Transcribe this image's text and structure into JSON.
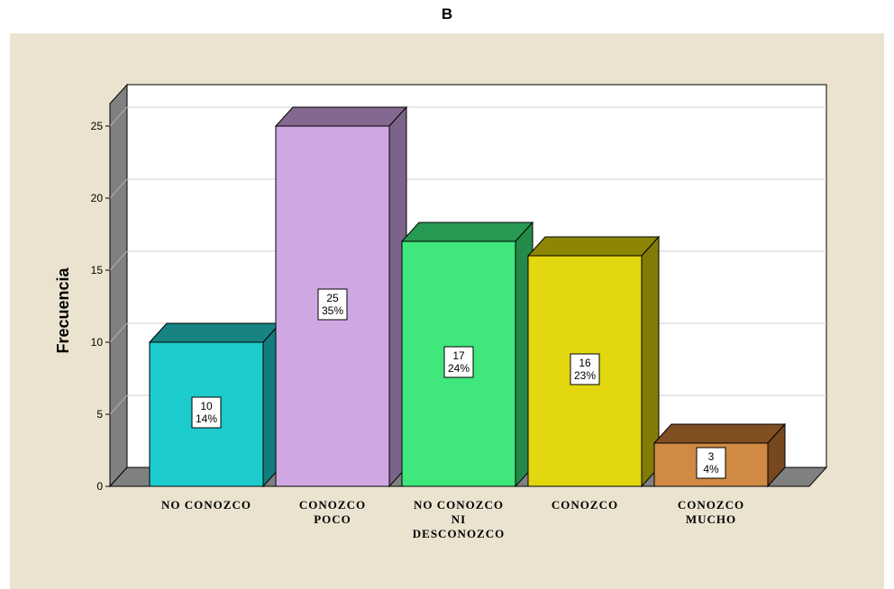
{
  "chart_data": {
    "type": "bar",
    "title": "B",
    "ylabel": "Frecuencia",
    "xlabel": "",
    "ylim": [
      0,
      25
    ],
    "yticks": [
      0,
      5,
      10,
      15,
      20,
      25
    ],
    "grid": true,
    "style": "3d",
    "categories": [
      [
        "NO CONOZCO"
      ],
      [
        "CONOZCO",
        "POCO"
      ],
      [
        "NO CONOZCO",
        "NI",
        "DESCONOZCO"
      ],
      [
        "CONOZCO"
      ],
      [
        "CONOZCO",
        "MUCHO"
      ]
    ],
    "values": [
      10,
      25,
      17,
      16,
      3
    ],
    "percent_labels": [
      "14%",
      "35%",
      "24%",
      "23%",
      "4%"
    ],
    "colors": {
      "front": [
        "#1ccccc",
        "#cfa8e3",
        "#40e77c",
        "#e3d70f",
        "#d08a44"
      ],
      "top": [
        "#188383",
        "#83698f",
        "#279952",
        "#8c8505",
        "#7f4f22"
      ],
      "side": [
        "#137c7c",
        "#7b6488",
        "#248a4a",
        "#827b05",
        "#774820"
      ],
      "wall": "#ffffff",
      "floor": "#808080",
      "panel": "#ebe3cf"
    }
  }
}
